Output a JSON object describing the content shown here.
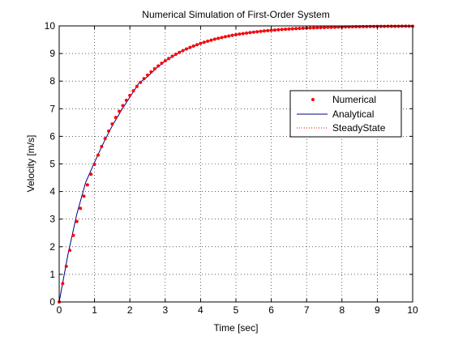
{
  "chart_data": {
    "type": "line",
    "title": "Numerical Simulation of First-Order System",
    "xlabel": "Time [sec]",
    "ylabel": "Velocity [m/s]",
    "xlim": [
      0,
      10
    ],
    "ylim": [
      0,
      10
    ],
    "xticks": [
      "0",
      "1",
      "2",
      "3",
      "4",
      "5",
      "6",
      "7",
      "8",
      "9",
      "10"
    ],
    "yticks": [
      "0",
      "1",
      "2",
      "3",
      "4",
      "5",
      "6",
      "7",
      "8",
      "9",
      "10"
    ],
    "grid": true,
    "grid_style": "dotted",
    "legend_position": "upper-right",
    "series": [
      {
        "name": "Numerical",
        "style": "markers",
        "color": "#ff0000",
        "x": [
          0,
          0.1,
          0.2,
          0.3,
          0.4,
          0.5,
          0.6,
          0.7,
          0.8,
          0.9,
          1.0,
          1.1,
          1.2,
          1.3,
          1.4,
          1.5,
          1.6,
          1.7,
          1.8,
          1.9,
          2.0,
          2.1,
          2.2,
          2.3,
          2.4,
          2.5,
          2.6,
          2.7,
          2.8,
          2.9,
          3.0,
          3.1,
          3.2,
          3.3,
          3.4,
          3.5,
          3.6,
          3.7,
          3.8,
          3.9,
          4.0,
          4.1,
          4.2,
          4.3,
          4.4,
          4.5,
          4.6,
          4.7,
          4.8,
          4.9,
          5.0,
          5.1,
          5.2,
          5.3,
          5.4,
          5.5,
          5.6,
          5.7,
          5.8,
          5.9,
          6.0,
          6.1,
          6.2,
          6.3,
          6.4,
          6.5,
          6.6,
          6.7,
          6.8,
          6.9,
          7.0,
          7.1,
          7.2,
          7.3,
          7.4,
          7.5,
          7.6,
          7.7,
          7.8,
          7.9,
          8.0,
          8.1,
          8.2,
          8.3,
          8.4,
          8.5,
          8.6,
          8.7,
          8.8,
          8.9,
          9.0,
          9.1,
          9.2,
          9.3,
          9.4,
          9.5,
          9.6,
          9.7,
          9.8,
          9.9,
          10.0
        ],
        "y": [
          0.0,
          0.667,
          1.289,
          1.87,
          2.412,
          2.918,
          3.39,
          3.831,
          4.242,
          4.626,
          4.984,
          5.318,
          5.63,
          5.921,
          6.193,
          6.447,
          6.684,
          6.905,
          7.111,
          7.304,
          7.483,
          7.651,
          7.808,
          7.954,
          8.09,
          8.217,
          8.336,
          8.447,
          8.55,
          8.647,
          8.737,
          8.821,
          8.899,
          8.973,
          9.041,
          9.105,
          9.165,
          9.22,
          9.272,
          9.32,
          9.365,
          9.407,
          9.447,
          9.483,
          9.518,
          9.55,
          9.58,
          9.608,
          9.634,
          9.658,
          9.681,
          9.702,
          9.722,
          9.741,
          9.758,
          9.774,
          9.789,
          9.803,
          9.816,
          9.828,
          9.84,
          9.851,
          9.861,
          9.87,
          9.879,
          9.887,
          9.894,
          9.901,
          9.908,
          9.914,
          9.92,
          9.925,
          9.93,
          9.935,
          9.939,
          9.943,
          9.947,
          9.95,
          9.954,
          9.957,
          9.96,
          9.962,
          9.965,
          9.967,
          9.969,
          9.971,
          9.973,
          9.975,
          9.977,
          9.978,
          9.98,
          9.981,
          9.982,
          9.984,
          9.985,
          9.986,
          9.987,
          9.988,
          9.988,
          9.989,
          9.99
        ]
      },
      {
        "name": "Analytical",
        "style": "line",
        "color": "#00007f",
        "x": [
          0,
          0.25,
          0.5,
          0.75,
          1.0,
          1.25,
          1.5,
          1.75,
          2.0,
          2.25,
          2.5,
          2.75,
          3.0,
          3.5,
          4.0,
          4.5,
          5.0,
          5.5,
          6.0,
          6.5,
          7.0,
          7.5,
          8.0,
          8.5,
          9.0,
          9.5,
          10.0
        ],
        "y": [
          0.0,
          1.73,
          3.19,
          4.33,
          5.06,
          5.75,
          6.38,
          6.92,
          7.42,
          7.92,
          8.16,
          8.47,
          8.73,
          9.11,
          9.37,
          9.55,
          9.69,
          9.78,
          9.85,
          9.89,
          9.92,
          9.95,
          9.96,
          9.97,
          9.98,
          9.99,
          9.99
        ]
      },
      {
        "name": "SteadyState",
        "style": "dotted",
        "color": "#ff0000",
        "x": [
          0,
          10
        ],
        "y": [
          10,
          10
        ]
      }
    ]
  }
}
